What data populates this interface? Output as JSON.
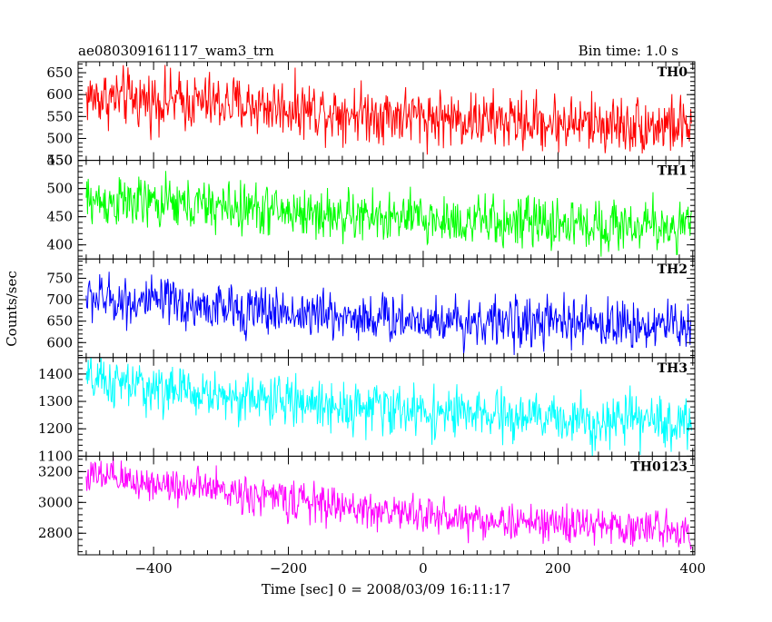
{
  "header": {
    "title": "ae080309161117_wam3_trn",
    "bin_time": "Bin time: 1.0 s"
  },
  "chart_data": {
    "type": "line",
    "xlabel": "Time [sec] 0 = 2008/03/09 16:11:17",
    "ylabel": "Counts/sec",
    "xlim": [
      -512,
      403
    ],
    "xticks": [
      -400,
      -200,
      0,
      200,
      400
    ],
    "xtick_labels": [
      "−400",
      "−200",
      "0",
      "200",
      "400"
    ],
    "bin_time_s": 1.0,
    "panels": [
      {
        "name": "TH0",
        "color": "#ff0000",
        "ylim": [
          450,
          675
        ],
        "yticks": [
          450,
          500,
          550,
          600,
          650
        ],
        "ytick_labels": [
          "450",
          "500",
          "550",
          "600",
          "650"
        ],
        "trend": [
          [
            -500,
            595
          ],
          [
            -300,
            580
          ],
          [
            -100,
            560
          ],
          [
            100,
            540
          ],
          [
            398,
            528
          ]
        ],
        "noise": 40
      },
      {
        "name": "TH1",
        "color": "#00ff00",
        "ylim": [
          375,
          550
        ],
        "yticks": [
          400,
          450,
          500,
          550
        ],
        "ytick_labels": [
          "400",
          "450",
          "500",
          "550"
        ],
        "trend": [
          [
            -500,
            478
          ],
          [
            -300,
            468
          ],
          [
            -100,
            450
          ],
          [
            100,
            440
          ],
          [
            398,
            432
          ]
        ],
        "noise": 28
      },
      {
        "name": "TH2",
        "color": "#0000ff",
        "ylim": [
          565,
          795
        ],
        "yticks": [
          600,
          650,
          700,
          750
        ],
        "ytick_labels": [
          "600",
          "650",
          "700",
          "750"
        ],
        "trend": [
          [
            -500,
            705
          ],
          [
            -300,
            680
          ],
          [
            -100,
            660
          ],
          [
            100,
            648
          ],
          [
            398,
            640
          ]
        ],
        "noise": 35
      },
      {
        "name": "TH3",
        "color": "#00ffff",
        "ylim": [
          1100,
          1460
        ],
        "yticks": [
          1100,
          1200,
          1300,
          1400
        ],
        "ytick_labels": [
          "1100",
          "1200",
          "1300",
          "1400"
        ],
        "trend": [
          [
            -500,
            1375
          ],
          [
            -300,
            1320
          ],
          [
            -100,
            1280
          ],
          [
            100,
            1245
          ],
          [
            398,
            1220
          ]
        ],
        "noise": 55
      },
      {
        "name": "TH0123",
        "color": "#ff00ff",
        "ylim": [
          2660,
          3300
        ],
        "yticks": [
          2800,
          3000,
          3200
        ],
        "ytick_labels": [
          "2800",
          "3000",
          "3200"
        ],
        "trend": [
          [
            -500,
            3170
          ],
          [
            -300,
            3080
          ],
          [
            -100,
            2960
          ],
          [
            100,
            2880
          ],
          [
            398,
            2820
          ]
        ],
        "noise": 75
      }
    ]
  }
}
